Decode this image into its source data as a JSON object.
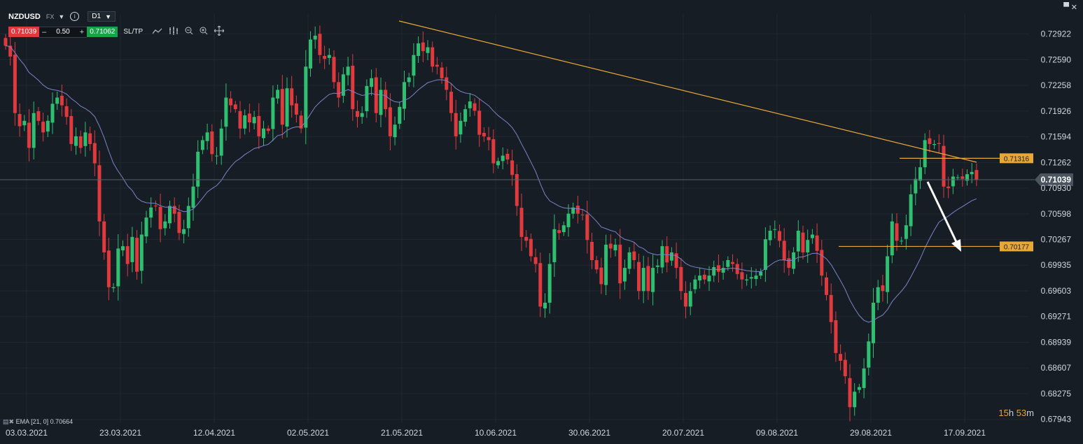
{
  "toolbar": {
    "symbol": "NZDUSD",
    "market": "FX",
    "timeframe": "D1",
    "sell_price": "0.71039",
    "minus": "–",
    "amount": "0.50",
    "plus": "+",
    "buy_price": "0.71062",
    "sltp_label": "SL/TP"
  },
  "icons": {
    "info": "info-icon",
    "line_tool": "line-tool-icon",
    "indicators": "indicators-icon",
    "zoom_out": "zoom-out-icon",
    "zoom_in": "zoom-in-icon",
    "crosshair": "crosshair-icon",
    "window": "window-icon",
    "close": "close-icon"
  },
  "window_controls": {
    "restore": "▀",
    "close": "✕"
  },
  "indicator_label": "EMA [21, 0] 0.70664",
  "countdown": {
    "hours": "15",
    "h": "h",
    "minutes": "53",
    "m": "m"
  },
  "colors": {
    "background": "#161d24",
    "bull": "#2fbf71",
    "bear": "#e0393e",
    "ema": "#7b85c9",
    "trendline": "#e8a838",
    "arrow": "#ffffff"
  },
  "chart_data": {
    "type": "candlestick",
    "symbol": "NZDUSD",
    "timeframe": "D1",
    "ylim": [
      0.6776,
      0.7318
    ],
    "y_ticks": [
      "0.72922",
      "0.72590",
      "0.72258",
      "0.71926",
      "0.71594",
      "0.71262",
      "0.70930",
      "0.70598",
      "0.70267",
      "0.69935",
      "0.69603",
      "0.69271",
      "0.68939",
      "0.68607",
      "0.68275",
      "0.67943"
    ],
    "x_ticks": [
      "03.03.2021",
      "23.03.2021",
      "12.04.2021",
      "02.05.2021",
      "21.05.2021",
      "10.06.2021",
      "30.06.2021",
      "20.07.2021",
      "09.08.2021",
      "29.08.2021",
      "17.09.2021"
    ],
    "current_price": "0.71039",
    "price_tags": [
      "0.71316",
      "0.70177"
    ],
    "ema_label": "EMA [21, 0] 0.70664",
    "closes": [
      0.7277,
      0.7263,
      0.719,
      0.7173,
      0.718,
      0.7145,
      0.719,
      0.718,
      0.7165,
      0.718,
      0.7202,
      0.721,
      0.72,
      0.7185,
      0.715,
      0.716,
      0.7145,
      0.7165,
      0.715,
      0.7125,
      0.705,
      0.701,
      0.6965,
      0.6965,
      0.7015,
      0.7018,
      0.6995,
      0.703,
      0.6985,
      0.7033,
      0.7055,
      0.7068,
      0.707,
      0.704,
      0.705,
      0.707,
      0.706,
      0.7035,
      0.704,
      0.707,
      0.7095,
      0.714,
      0.7155,
      0.7165,
      0.7137,
      0.7135,
      0.717,
      0.721,
      0.72,
      0.7195,
      0.717,
      0.7187,
      0.7178,
      0.7185,
      0.716,
      0.717,
      0.7167,
      0.721,
      0.722,
      0.7175,
      0.7222,
      0.72,
      0.7188,
      0.717,
      0.725,
      0.7285,
      0.729,
      0.7265,
      0.726,
      0.7265,
      0.723,
      0.721,
      0.724,
      0.725,
      0.7195,
      0.7185,
      0.719,
      0.7225,
      0.7235,
      0.719,
      0.722,
      0.7195,
      0.716,
      0.7175,
      0.7198,
      0.723,
      0.7236,
      0.7265,
      0.728,
      0.727,
      0.7275,
      0.725,
      0.725,
      0.7235,
      0.722,
      0.719,
      0.716,
      0.718,
      0.7195,
      0.7205,
      0.7193,
      0.7162,
      0.716,
      0.7155,
      0.7125,
      0.7128,
      0.7135,
      0.713,
      0.711,
      0.707,
      0.703,
      0.7025,
      0.7005,
      0.6995,
      0.694,
      0.6945,
      0.6995,
      0.704,
      0.7035,
      0.7045,
      0.706,
      0.7068,
      0.706,
      0.7058,
      0.7026,
      0.7,
      0.6988,
      0.6969,
      0.702,
      0.7015,
      0.702,
      0.697,
      0.699,
      0.701,
      0.7,
      0.696,
      0.699,
      0.696,
      0.699,
      0.6993,
      0.7018,
      0.6997,
      0.701,
      0.699,
      0.696,
      0.694,
      0.696,
      0.6975,
      0.698,
      0.6975,
      0.698,
      0.6991,
      0.6985,
      0.699,
      0.7,
      0.6995,
      0.6982,
      0.6975,
      0.6975,
      0.6978,
      0.698,
      0.6985,
      0.7027,
      0.7038,
      0.704,
      0.7025,
      0.7,
      0.699,
      0.701,
      0.7038,
      0.701,
      0.7026,
      0.7033,
      0.7012,
      0.698,
      0.6955,
      0.692,
      0.688,
      0.687,
      0.685,
      0.681,
      0.683,
      0.6836,
      0.686,
      0.6895,
      0.6945,
      0.6965,
      0.696,
      0.7005,
      0.705,
      0.7025,
      0.7025,
      0.7045,
      0.7085,
      0.7105,
      0.712,
      0.7155,
      0.715,
      0.715,
      0.715,
      0.7095,
      0.7093,
      0.7108,
      0.7107,
      0.7105,
      0.7111,
      0.7114,
      0.7104
    ]
  }
}
